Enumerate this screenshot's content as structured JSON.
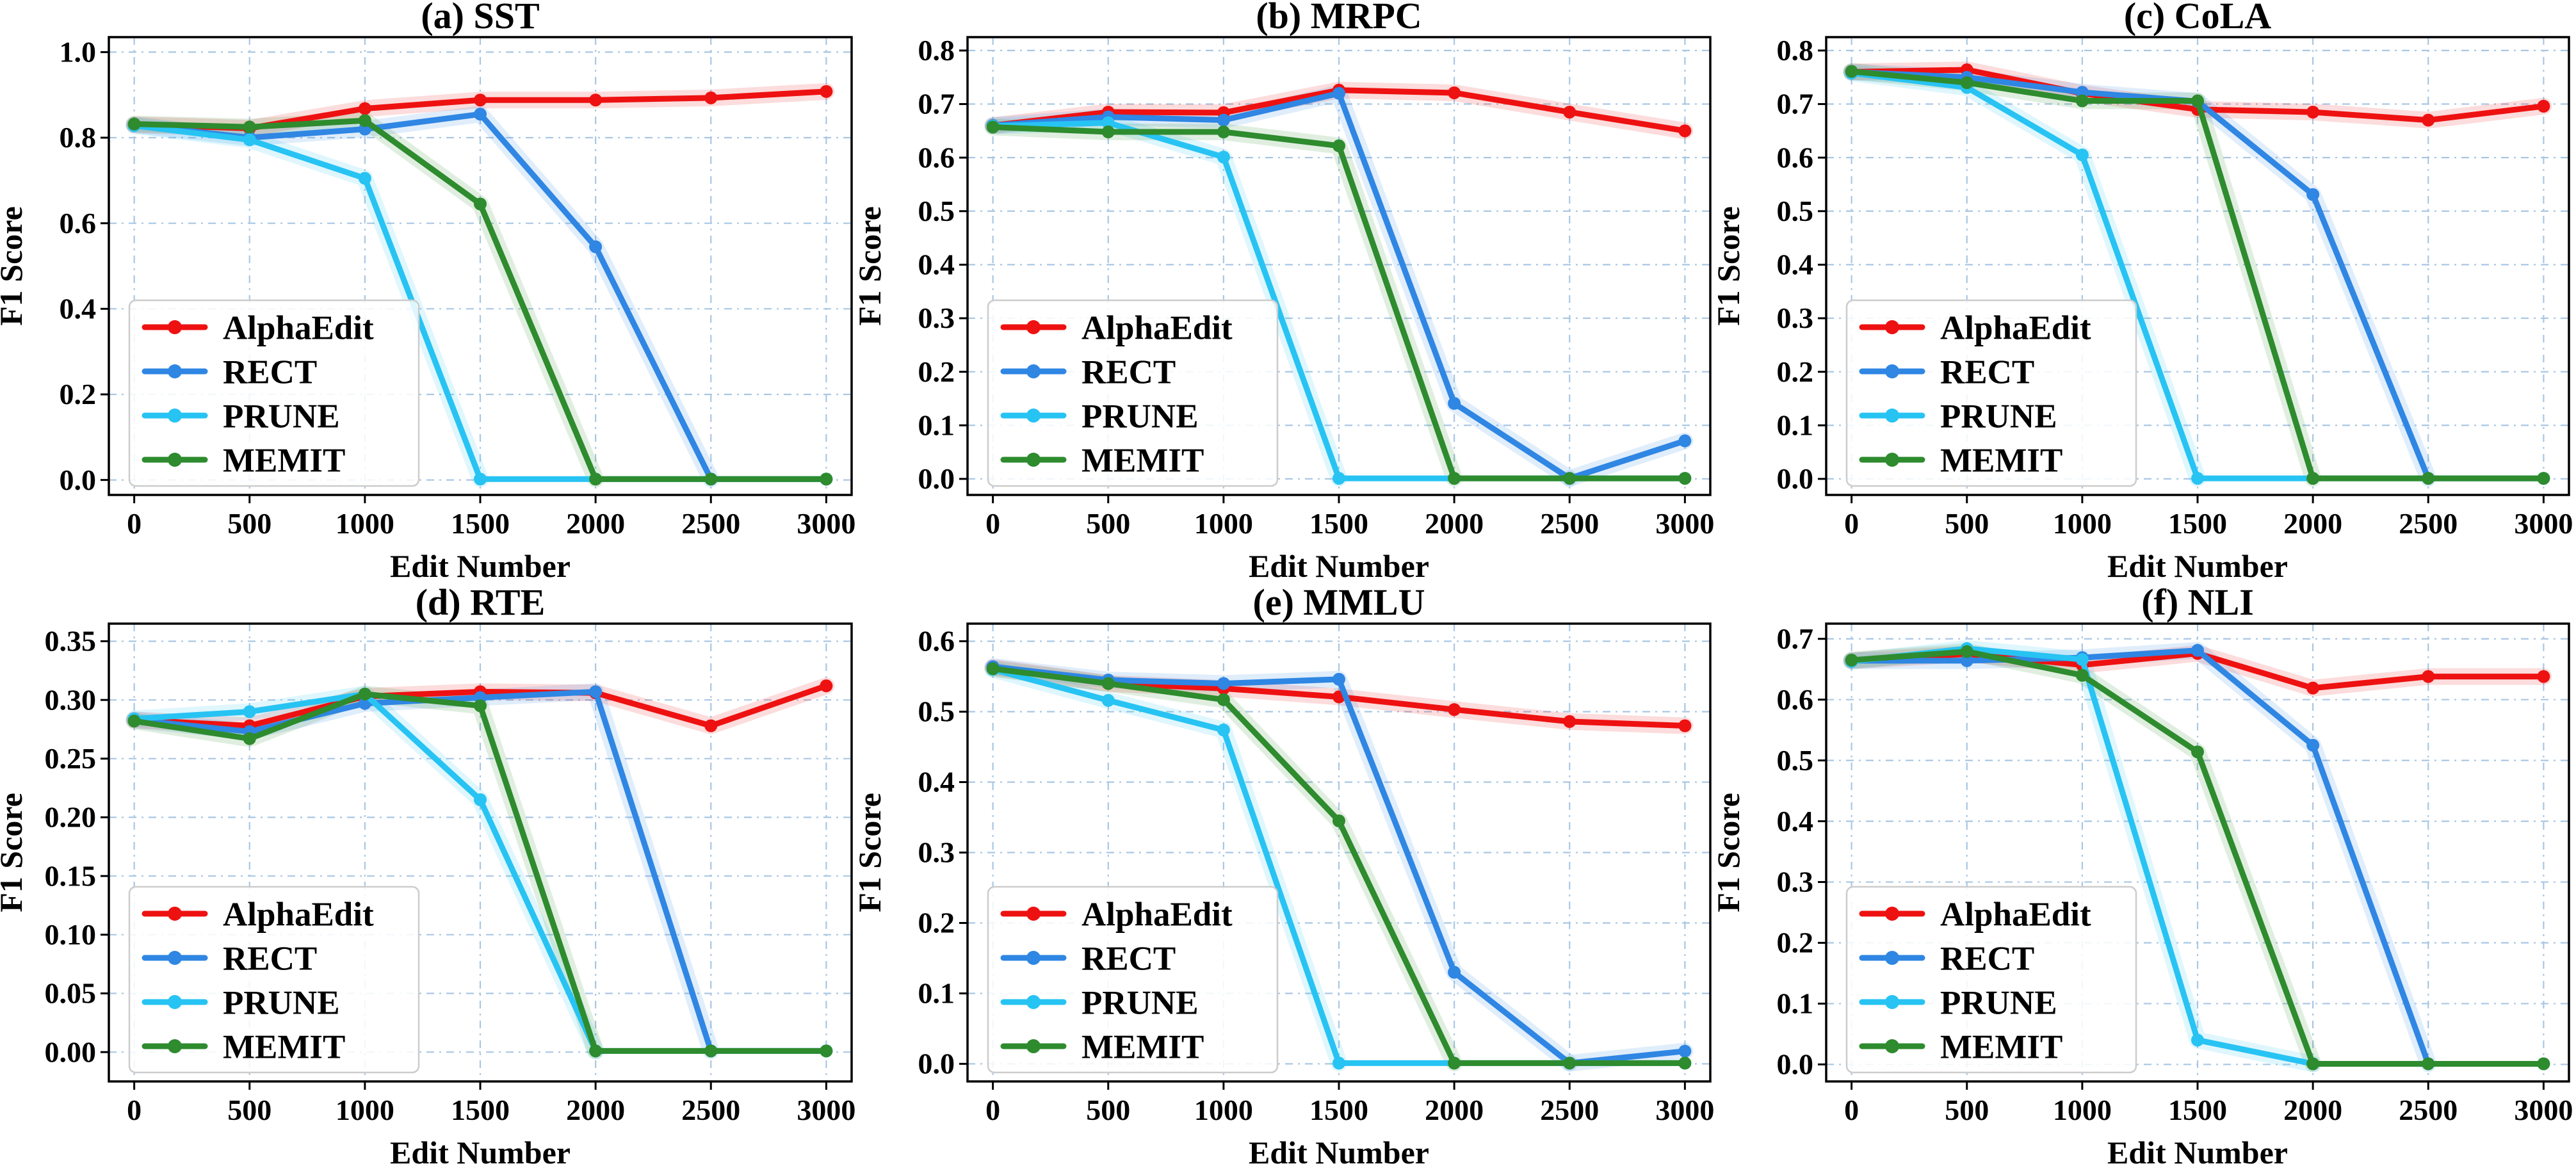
{
  "figure": {
    "xlabel": "Edit Number",
    "ylabel": "F1 Score"
  },
  "style": {
    "background": "#ffffff",
    "grid_color": "#a9c7e4",
    "spine_color": "#000000",
    "tick_color": "#000000",
    "legend_border": "#cccccc",
    "legend_fill_alpha": 0.85,
    "band_opacity": 0.15
  },
  "methods": [
    {
      "name": "AlphaEdit",
      "color": "#ee1111"
    },
    {
      "name": "RECT",
      "color": "#2f86e3"
    },
    {
      "name": "PRUNE",
      "color": "#27c3f3"
    },
    {
      "name": "MEMIT",
      "color": "#2e8b2e"
    }
  ],
  "chart_data": [
    {
      "type": "line",
      "title": "(a) SST",
      "xlabel": "Edit Number",
      "ylabel": "F1 Score",
      "x": [
        0,
        500,
        1000,
        1500,
        2000,
        2500,
        3000
      ],
      "xticks": [
        0,
        500,
        1000,
        1500,
        2000,
        2500,
        3000
      ],
      "xtick_labels": [
        "0",
        "500",
        "1000",
        "1500",
        "2000",
        "2500",
        "3000"
      ],
      "xlim": [
        -110,
        3110
      ],
      "ylim": [
        -0.035,
        1.035
      ],
      "yticks": [
        0.0,
        0.2,
        0.4,
        0.6,
        0.8,
        1.0
      ],
      "ytick_labels": [
        "0.0",
        "0.2",
        "0.4",
        "0.6",
        "0.8",
        "1.0"
      ],
      "grid": true,
      "legend_position": "lower-left",
      "series": [
        {
          "name": "AlphaEdit",
          "color": "#ee1111",
          "values": [
            0.83,
            0.822,
            0.868,
            0.888,
            0.888,
            0.893,
            0.908
          ]
        },
        {
          "name": "RECT",
          "color": "#2f86e3",
          "values": [
            0.83,
            0.8,
            0.82,
            0.855,
            0.545,
            0.002,
            0.002
          ]
        },
        {
          "name": "PRUNE",
          "color": "#27c3f3",
          "values": [
            0.828,
            0.795,
            0.705,
            0.002,
            0.002,
            0.002,
            0.002
          ]
        },
        {
          "name": "MEMIT",
          "color": "#2e8b2e",
          "values": [
            0.832,
            0.825,
            0.84,
            0.645,
            0.002,
            0.002,
            0.002
          ]
        }
      ]
    },
    {
      "type": "line",
      "title": "(b) MRPC",
      "xlabel": "Edit Number",
      "ylabel": "F1 Score",
      "x": [
        0,
        500,
        1000,
        1500,
        2000,
        2500,
        3000
      ],
      "xticks": [
        0,
        500,
        1000,
        1500,
        2000,
        2500,
        3000
      ],
      "xtick_labels": [
        "0",
        "500",
        "1000",
        "1500",
        "2000",
        "2500",
        "3000"
      ],
      "xlim": [
        -110,
        3110
      ],
      "ylim": [
        -0.03,
        0.825
      ],
      "yticks": [
        0.0,
        0.1,
        0.2,
        0.3,
        0.4,
        0.5,
        0.6,
        0.7,
        0.8
      ],
      "ytick_labels": [
        "0.0",
        "0.1",
        "0.2",
        "0.3",
        "0.4",
        "0.5",
        "0.6",
        "0.7",
        "0.8"
      ],
      "grid": true,
      "legend_position": "lower-left",
      "series": [
        {
          "name": "AlphaEdit",
          "color": "#ee1111",
          "values": [
            0.66,
            0.685,
            0.684,
            0.726,
            0.721,
            0.685,
            0.65
          ]
        },
        {
          "name": "RECT",
          "color": "#2f86e3",
          "values": [
            0.66,
            0.676,
            0.67,
            0.72,
            0.141,
            0.001,
            0.071
          ]
        },
        {
          "name": "PRUNE",
          "color": "#27c3f3",
          "values": [
            0.659,
            0.665,
            0.601,
            0.001,
            0.001,
            0.001,
            0.001
          ]
        },
        {
          "name": "MEMIT",
          "color": "#2e8b2e",
          "values": [
            0.657,
            0.648,
            0.648,
            0.622,
            0.001,
            0.001,
            0.001
          ]
        }
      ]
    },
    {
      "type": "line",
      "title": "(c) CoLA",
      "xlabel": "Edit Number",
      "ylabel": "F1 Score",
      "x": [
        0,
        500,
        1000,
        1500,
        2000,
        2500,
        3000
      ],
      "xticks": [
        0,
        500,
        1000,
        1500,
        2000,
        2500,
        3000
      ],
      "xtick_labels": [
        "0",
        "500",
        "1000",
        "1500",
        "2000",
        "2500",
        "3000"
      ],
      "xlim": [
        -110,
        3110
      ],
      "ylim": [
        -0.03,
        0.825
      ],
      "yticks": [
        0.0,
        0.1,
        0.2,
        0.3,
        0.4,
        0.5,
        0.6,
        0.7,
        0.8
      ],
      "ytick_labels": [
        "0.0",
        "0.1",
        "0.2",
        "0.3",
        "0.4",
        "0.5",
        "0.6",
        "0.7",
        "0.8"
      ],
      "grid": true,
      "legend_position": "lower-left",
      "series": [
        {
          "name": "AlphaEdit",
          "color": "#ee1111",
          "values": [
            0.76,
            0.764,
            0.72,
            0.69,
            0.685,
            0.67,
            0.696
          ]
        },
        {
          "name": "RECT",
          "color": "#2f86e3",
          "values": [
            0.76,
            0.75,
            0.722,
            0.705,
            0.531,
            0.001,
            0.001
          ]
        },
        {
          "name": "PRUNE",
          "color": "#27c3f3",
          "values": [
            0.758,
            0.731,
            0.605,
            0.001,
            0.001,
            0.001,
            0.001
          ]
        },
        {
          "name": "MEMIT",
          "color": "#2e8b2e",
          "values": [
            0.761,
            0.74,
            0.706,
            0.706,
            0.001,
            0.001,
            0.001
          ]
        }
      ]
    },
    {
      "type": "line",
      "title": "(d) RTE",
      "xlabel": "Edit Number",
      "ylabel": "F1 Score",
      "x": [
        0,
        500,
        1000,
        1500,
        2000,
        2500,
        3000
      ],
      "xticks": [
        0,
        500,
        1000,
        1500,
        2000,
        2500,
        3000
      ],
      "xtick_labels": [
        "0",
        "500",
        "1000",
        "1500",
        "2000",
        "2500",
        "3000"
      ],
      "xlim": [
        -110,
        3110
      ],
      "ylim": [
        -0.025,
        0.365
      ],
      "yticks": [
        0.0,
        0.05,
        0.1,
        0.15,
        0.2,
        0.25,
        0.3,
        0.35
      ],
      "ytick_labels": [
        "0.00",
        "0.05",
        "0.10",
        "0.15",
        "0.20",
        "0.25",
        "0.30",
        "0.35"
      ],
      "grid": true,
      "legend_position": "lower-left",
      "series": [
        {
          "name": "AlphaEdit",
          "color": "#ee1111",
          "values": [
            0.283,
            0.278,
            0.303,
            0.307,
            0.306,
            0.278,
            0.312
          ]
        },
        {
          "name": "RECT",
          "color": "#2f86e3",
          "values": [
            0.283,
            0.273,
            0.297,
            0.302,
            0.307,
            0.001,
            0.001
          ]
        },
        {
          "name": "PRUNE",
          "color": "#27c3f3",
          "values": [
            0.284,
            0.29,
            0.305,
            0.215,
            0.001,
            0.001,
            0.001
          ]
        },
        {
          "name": "MEMIT",
          "color": "#2e8b2e",
          "values": [
            0.282,
            0.267,
            0.305,
            0.295,
            0.001,
            0.001,
            0.001
          ]
        }
      ]
    },
    {
      "type": "line",
      "title": "(e) MMLU",
      "xlabel": "Edit Number",
      "ylabel": "F1 Score",
      "x": [
        0,
        500,
        1000,
        1500,
        2000,
        2500,
        3000
      ],
      "xticks": [
        0,
        500,
        1000,
        1500,
        2000,
        2500,
        3000
      ],
      "xtick_labels": [
        "0",
        "500",
        "1000",
        "1500",
        "2000",
        "2500",
        "3000"
      ],
      "xlim": [
        -110,
        3110
      ],
      "ylim": [
        -0.025,
        0.625
      ],
      "yticks": [
        0.0,
        0.1,
        0.2,
        0.3,
        0.4,
        0.5,
        0.6
      ],
      "ytick_labels": [
        "0.0",
        "0.1",
        "0.2",
        "0.3",
        "0.4",
        "0.5",
        "0.6"
      ],
      "grid": true,
      "legend_position": "lower-left",
      "series": [
        {
          "name": "AlphaEdit",
          "color": "#ee1111",
          "values": [
            0.563,
            0.54,
            0.533,
            0.521,
            0.503,
            0.486,
            0.48
          ]
        },
        {
          "name": "RECT",
          "color": "#2f86e3",
          "values": [
            0.564,
            0.545,
            0.54,
            0.546,
            0.13,
            0.001,
            0.018
          ]
        },
        {
          "name": "PRUNE",
          "color": "#27c3f3",
          "values": [
            0.56,
            0.516,
            0.474,
            0.001,
            0.001,
            0.001,
            0.001
          ]
        },
        {
          "name": "MEMIT",
          "color": "#2e8b2e",
          "values": [
            0.561,
            0.54,
            0.517,
            0.345,
            0.001,
            0.001,
            0.001
          ]
        }
      ]
    },
    {
      "type": "line",
      "title": "(f) NLI",
      "xlabel": "Edit Number",
      "ylabel": "F1 Score",
      "x": [
        0,
        500,
        1000,
        1500,
        2000,
        2500,
        3000
      ],
      "xticks": [
        0,
        500,
        1000,
        1500,
        2000,
        2500,
        3000
      ],
      "xtick_labels": [
        "0",
        "500",
        "1000",
        "1500",
        "2000",
        "2500",
        "3000"
      ],
      "xlim": [
        -110,
        3110
      ],
      "ylim": [
        -0.028,
        0.725
      ],
      "yticks": [
        0.0,
        0.1,
        0.2,
        0.3,
        0.4,
        0.5,
        0.6,
        0.7
      ],
      "ytick_labels": [
        "0.0",
        "0.1",
        "0.2",
        "0.3",
        "0.4",
        "0.5",
        "0.6",
        "0.7"
      ],
      "grid": true,
      "legend_position": "lower-left",
      "series": [
        {
          "name": "AlphaEdit",
          "color": "#ee1111",
          "values": [
            0.664,
            0.675,
            0.657,
            0.676,
            0.619,
            0.638,
            0.638
          ]
        },
        {
          "name": "RECT",
          "color": "#2f86e3",
          "values": [
            0.664,
            0.664,
            0.669,
            0.681,
            0.525,
            0.001,
            0.001
          ]
        },
        {
          "name": "PRUNE",
          "color": "#27c3f3",
          "values": [
            0.663,
            0.684,
            0.666,
            0.04,
            0.001,
            0.001,
            0.001
          ]
        },
        {
          "name": "MEMIT",
          "color": "#2e8b2e",
          "values": [
            0.665,
            0.679,
            0.64,
            0.514,
            0.001,
            0.001,
            0.001
          ]
        }
      ]
    }
  ]
}
